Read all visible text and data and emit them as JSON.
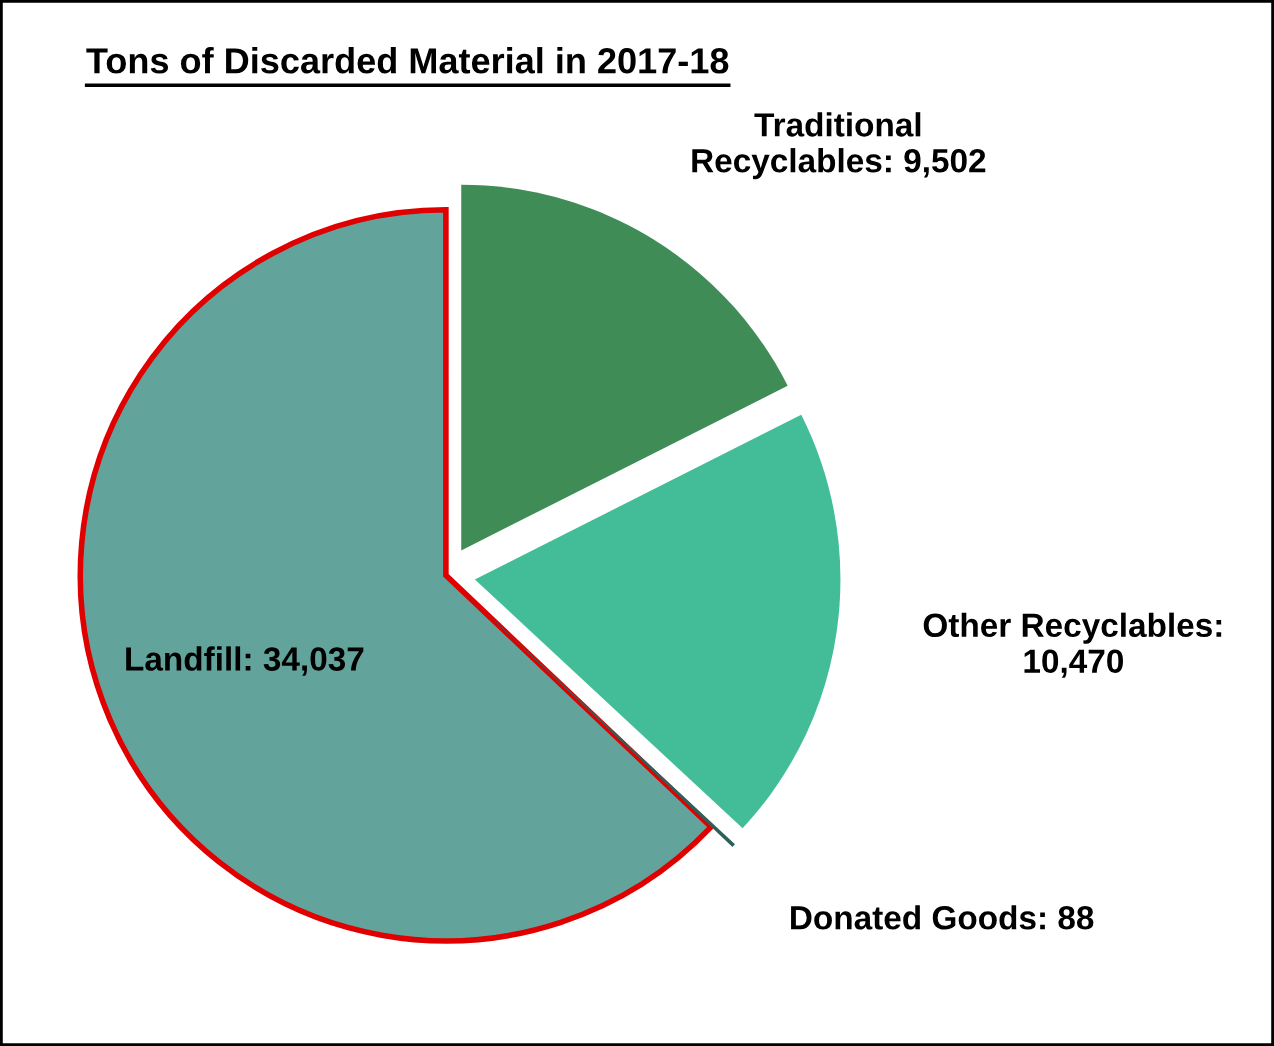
{
  "chart_data": {
    "type": "pie",
    "title": "Tons of Discarded Material in 2017-18",
    "categories": [
      "Landfill: 34,037",
      "Donated Goods: 88",
      "Other Recyclables: 10,470",
      "Traditional Recyclables: 9,502"
    ],
    "values": [
      34037,
      88,
      10470,
      9502
    ],
    "colors": [
      "#62a39c",
      "#2f5f58",
      "#43bd98",
      "#3f8c57"
    ],
    "legend": false
  }
}
